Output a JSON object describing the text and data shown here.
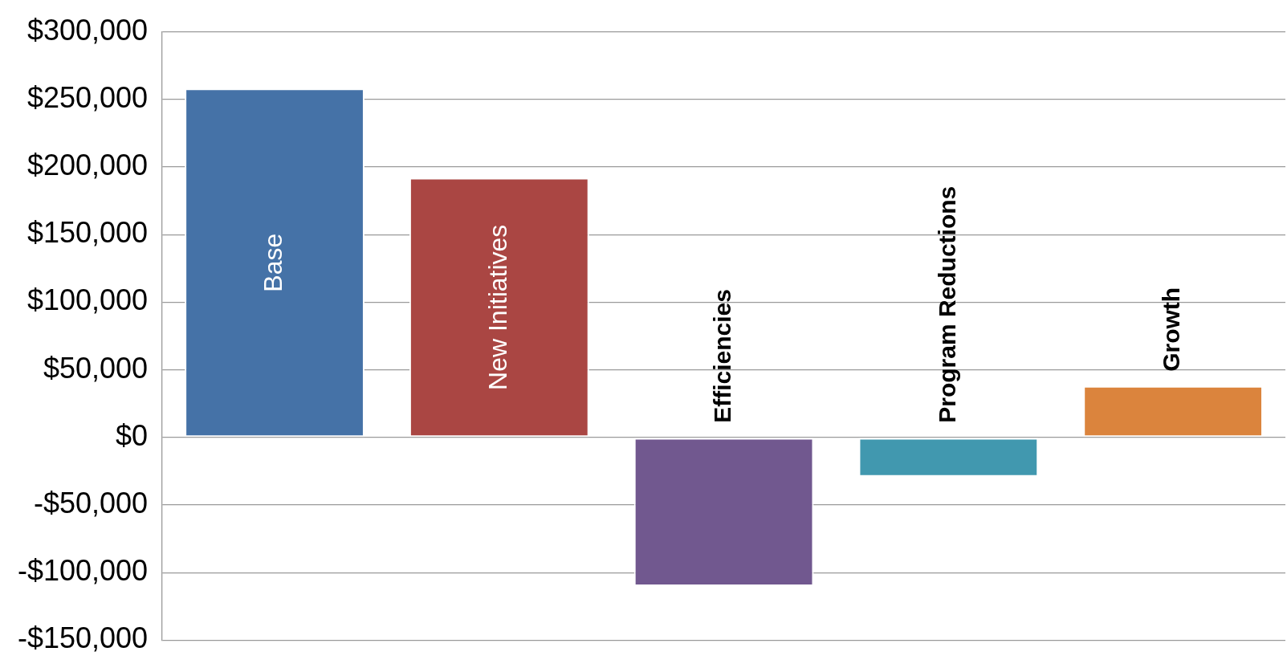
{
  "chart_data": {
    "type": "bar",
    "categories": [
      "Base",
      "New Initiatives",
      "Efficiencies",
      "Program Reductions",
      "Growth"
    ],
    "values": [
      258000,
      192000,
      -110000,
      -29000,
      38000
    ],
    "colors": [
      "#4572a7",
      "#aa4643",
      "#71588f",
      "#4198af",
      "#db843d"
    ],
    "ylim": [
      -150000,
      300000
    ],
    "yticks": [
      {
        "value": -150000,
        "label": "-$150,000"
      },
      {
        "value": -100000,
        "label": "-$100,000"
      },
      {
        "value": -50000,
        "label": "-$50,000"
      },
      {
        "value": 0,
        "label": "$0"
      },
      {
        "value": 50000,
        "label": "$50,000"
      },
      {
        "value": 100000,
        "label": "$100,000"
      },
      {
        "value": 150000,
        "label": "$150,000"
      },
      {
        "value": 200000,
        "label": "$200,000"
      },
      {
        "value": 250000,
        "label": "$250,000"
      },
      {
        "value": 300000,
        "label": "$300,000"
      }
    ],
    "grid": "y",
    "legend": false,
    "tick_labels": "y"
  }
}
